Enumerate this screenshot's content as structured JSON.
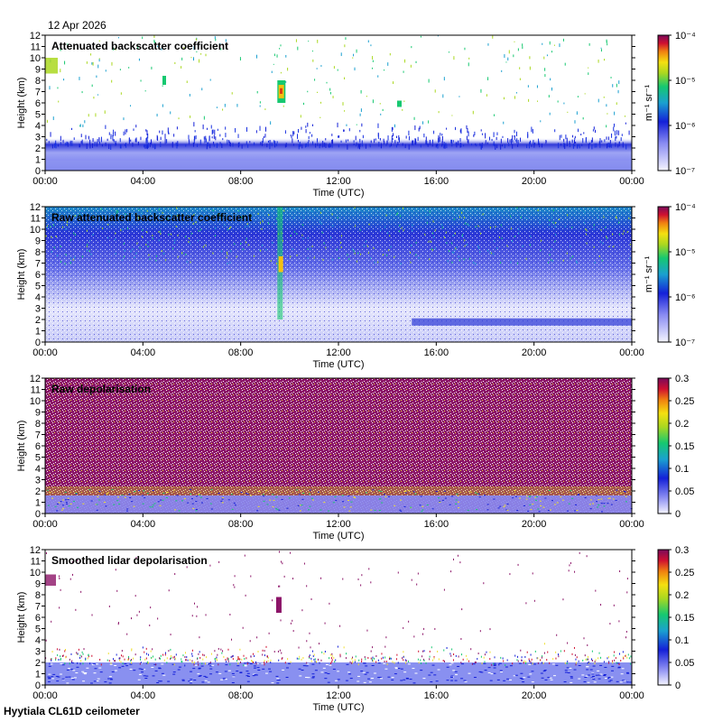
{
  "date": "12 Apr 2026",
  "footer": "Hyytiala CL61D ceilometer",
  "chart_data": [
    {
      "type": "heatmap",
      "title": "Attenuated backscatter coefficient",
      "xlabel": "Time (UTC)",
      "ylabel": "Height (km)",
      "xticks": [
        "00:00",
        "04:00",
        "08:00",
        "12:00",
        "16:00",
        "20:00",
        "00:00"
      ],
      "yticks": [
        0,
        1,
        2,
        3,
        4,
        5,
        6,
        7,
        8,
        9,
        10,
        11,
        12
      ],
      "ylim": [
        0,
        12
      ],
      "colorbar": {
        "scale": "log",
        "ticks": [
          "10⁻⁷",
          "10⁻⁶",
          "10⁻⁵",
          "10⁻⁴"
        ],
        "label": "m⁻¹ sr⁻¹"
      },
      "features": [
        {
          "time_h": [
            0,
            24
          ],
          "height_km": [
            0,
            2.5
          ],
          "level": "boundary-layer aerosol"
        },
        {
          "time_h": [
            9.4,
            9.8
          ],
          "height_km": [
            6,
            8
          ],
          "level": "cloud"
        },
        {
          "time_h": [
            0,
            0.6
          ],
          "height_km": [
            8.5,
            10
          ],
          "level": "cloud"
        }
      ]
    },
    {
      "type": "heatmap",
      "title": "Raw attenuated backscatter coefficient",
      "xlabel": "Time (UTC)",
      "ylabel": "Height (km)",
      "xticks": [
        "00:00",
        "04:00",
        "08:00",
        "12:00",
        "16:00",
        "20:00",
        "00:00"
      ],
      "yticks": [
        0,
        1,
        2,
        3,
        4,
        5,
        6,
        7,
        8,
        9,
        10,
        11,
        12
      ],
      "ylim": [
        0,
        12
      ],
      "colorbar": {
        "scale": "log",
        "ticks": [
          "10⁻⁷",
          "10⁻⁶",
          "10⁻⁵",
          "10⁻⁴"
        ],
        "label": "m⁻¹ sr⁻¹"
      }
    },
    {
      "type": "heatmap",
      "title": "Raw depolarisation",
      "xlabel": "Time (UTC)",
      "ylabel": "Height (km)",
      "xticks": [
        "00:00",
        "04:00",
        "08:00",
        "12:00",
        "16:00",
        "20:00",
        "00:00"
      ],
      "yticks": [
        0,
        1,
        2,
        3,
        4,
        5,
        6,
        7,
        8,
        9,
        10,
        11,
        12
      ],
      "ylim": [
        0,
        12
      ],
      "colorbar": {
        "scale": "linear",
        "ticks": [
          "0",
          "0.05",
          "0.1",
          "0.15",
          "0.2",
          "0.25",
          "0.3"
        ],
        "label": ""
      }
    },
    {
      "type": "heatmap",
      "title": "Smoothed lidar depolarisation",
      "xlabel": "Time (UTC)",
      "ylabel": "Height (km)",
      "xticks": [
        "00:00",
        "04:00",
        "08:00",
        "12:00",
        "16:00",
        "20:00",
        "00:00"
      ],
      "yticks": [
        0,
        1,
        2,
        3,
        4,
        5,
        6,
        7,
        8,
        9,
        10,
        11,
        12
      ],
      "ylim": [
        0,
        12
      ],
      "colorbar": {
        "scale": "linear",
        "ticks": [
          "0",
          "0.05",
          "0.1",
          "0.15",
          "0.2",
          "0.25",
          "0.3"
        ],
        "label": ""
      }
    }
  ]
}
